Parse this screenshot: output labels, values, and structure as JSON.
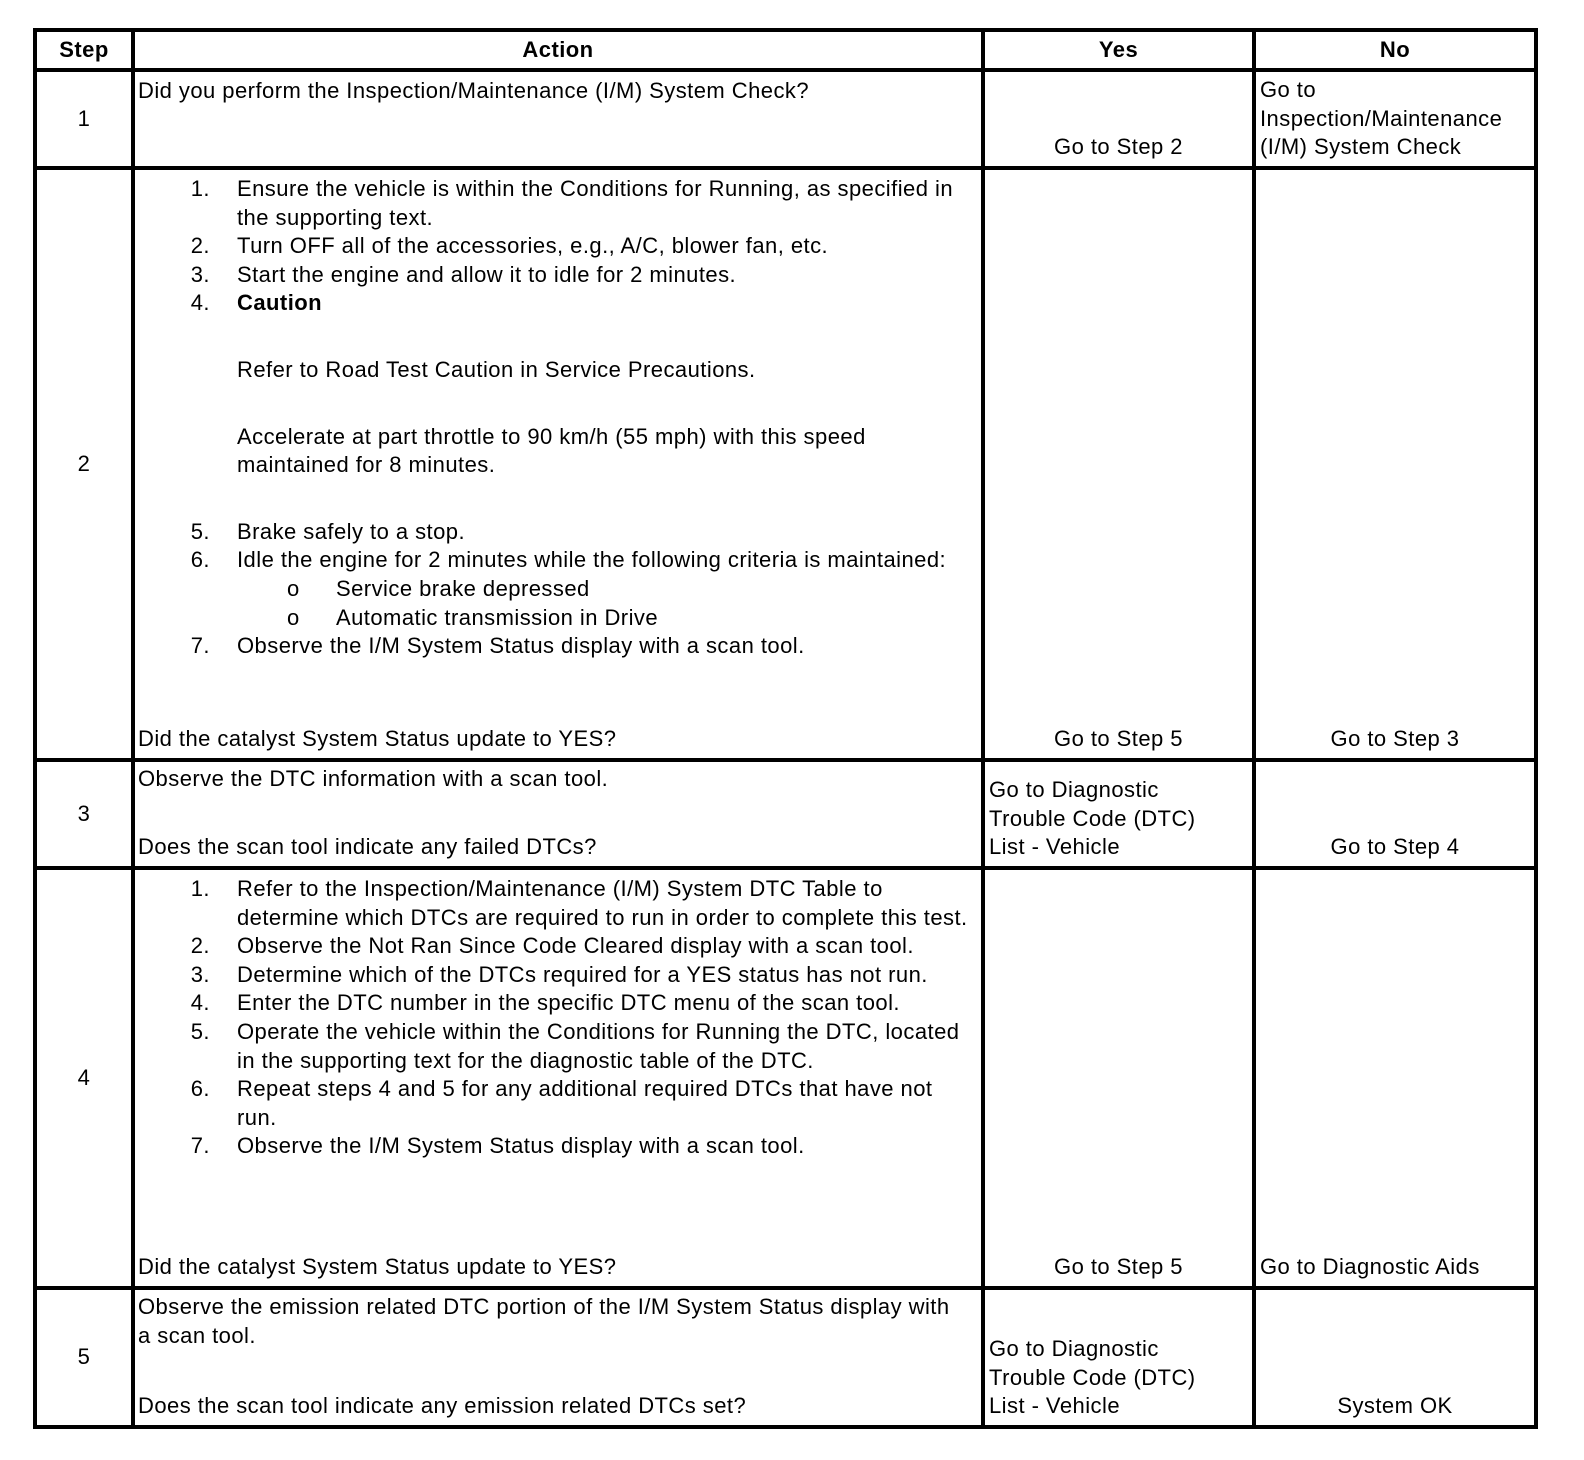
{
  "header": {
    "step": "Step",
    "action": "Action",
    "yes": "Yes",
    "no": "No"
  },
  "rows": [
    {
      "step": "1",
      "action": {
        "question": "Did you perform the Inspection/Maintenance (I/M) System Check?"
      },
      "yes": "Go to Step 2",
      "no": "Go to Inspection/Maintenance (I/M) System Check"
    },
    {
      "step": "2",
      "action": {
        "items": [
          "Ensure the vehicle is within the Conditions for Running, as specified in the supporting text.",
          "Turn OFF all of the accessories, e.g., A/C, blower fan, etc.",
          "Start the engine and allow it to idle for 2 minutes.",
          "Caution",
          "Brake safely to a stop.",
          "Idle the engine for 2 minutes while the following criteria is maintained:",
          "Observe the I/M System Status display with a scan tool."
        ],
        "caution_text": "Refer to Road Test Caution in Service Precautions.",
        "caution_step": "Accelerate at part throttle to 90 km/h (55 mph) with this speed maintained for 8 minutes.",
        "criteria": [
          "Service brake depressed",
          "Automatic transmission in Drive"
        ],
        "bullet": "o",
        "question": "Did the catalyst System Status update to YES?"
      },
      "yes": "Go to Step 5",
      "no": "Go to Step 3"
    },
    {
      "step": "3",
      "action": {
        "intro": "Observe the DTC information with a scan tool.",
        "question": "Does the scan tool indicate any failed DTCs?"
      },
      "yes": "Go to Diagnostic Trouble Code (DTC) List - Vehicle",
      "no": "Go to Step 4"
    },
    {
      "step": "4",
      "action": {
        "items": [
          "Refer to the Inspection/Maintenance (I/M) System DTC Table to determine which DTCs are required to run in order to complete this test.",
          "Observe the Not Ran Since Code Cleared display with a scan tool.",
          "Determine which of the DTCs required for a YES status has not run.",
          "Enter the DTC number in the specific DTC menu of the scan tool.",
          "Operate the vehicle within the Conditions for Running the DTC, located in the supporting text for the diagnostic table of the DTC.",
          "Repeat steps 4 and 5 for any additional required DTCs that have not run.",
          "Observe the I/M System Status display with a scan tool."
        ],
        "question": "Did the catalyst System Status update to YES?"
      },
      "yes": "Go to Step 5",
      "no": "Go to Diagnostic Aids"
    },
    {
      "step": "5",
      "action": {
        "intro": "Observe the emission related DTC portion of the I/M System Status display with a scan tool.",
        "question": "Does the scan tool indicate any emission related DTCs set?"
      },
      "yes": "Go to Diagnostic Trouble Code (DTC) List - Vehicle",
      "no": "System OK"
    }
  ]
}
